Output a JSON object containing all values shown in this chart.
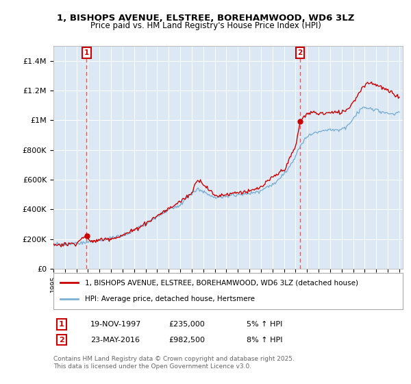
{
  "title_line1": "1, BISHOPS AVENUE, ELSTREE, BOREHAMWOOD, WD6 3LZ",
  "title_line2": "Price paid vs. HM Land Registry's House Price Index (HPI)",
  "ylim": [
    0,
    1500000
  ],
  "yticks": [
    0,
    200000,
    400000,
    600000,
    800000,
    1000000,
    1200000,
    1400000
  ],
  "ytick_labels": [
    "£0",
    "£200K",
    "£400K",
    "£600K",
    "£800K",
    "£1M",
    "£1.2M",
    "£1.4M"
  ],
  "sale1_date": "19-NOV-1997",
  "sale1_price": 235000,
  "sale1_year": 1997.88,
  "sale1_label": "5% ↑ HPI",
  "sale2_date": "23-MAY-2016",
  "sale2_price": 982500,
  "sale2_year": 2016.38,
  "sale2_label": "8% ↑ HPI",
  "legend_property": "1, BISHOPS AVENUE, ELSTREE, BOREHAMWOOD, WD6 3LZ (detached house)",
  "legend_hpi": "HPI: Average price, detached house, Hertsmere",
  "footnote": "Contains HM Land Registry data © Crown copyright and database right 2025.\nThis data is licensed under the Open Government Licence v3.0.",
  "property_color": "#cc0000",
  "hpi_color": "#7bafd4",
  "sale_marker_color": "#cc0000",
  "background_color": "#ffffff",
  "plot_bg_color": "#dce9f5",
  "grid_color": "#ffffff",
  "vline_color": "#cc6666"
}
